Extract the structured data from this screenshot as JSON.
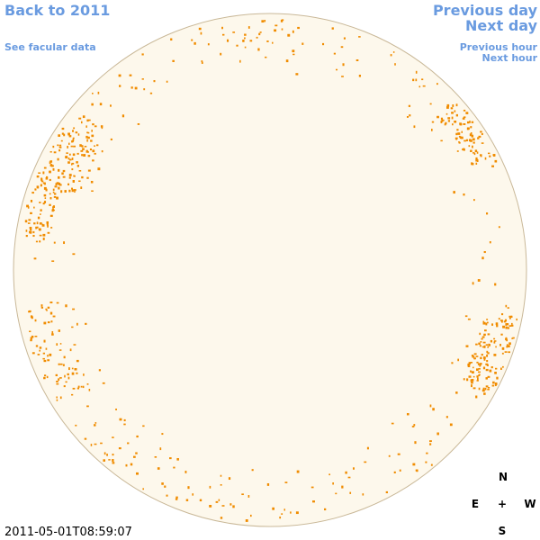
{
  "links": {
    "back": "Back to 2011",
    "see_facular": "See facular data",
    "previous_day": "Previous day",
    "next_day": "Next day",
    "previous_hour": "Previous hour",
    "next_hour": "Next hour"
  },
  "timestamp": "2011-05-01T08:59:07",
  "compass": {
    "north": "N",
    "east": "E",
    "center": "+",
    "west": "W",
    "south": "S"
  }
}
